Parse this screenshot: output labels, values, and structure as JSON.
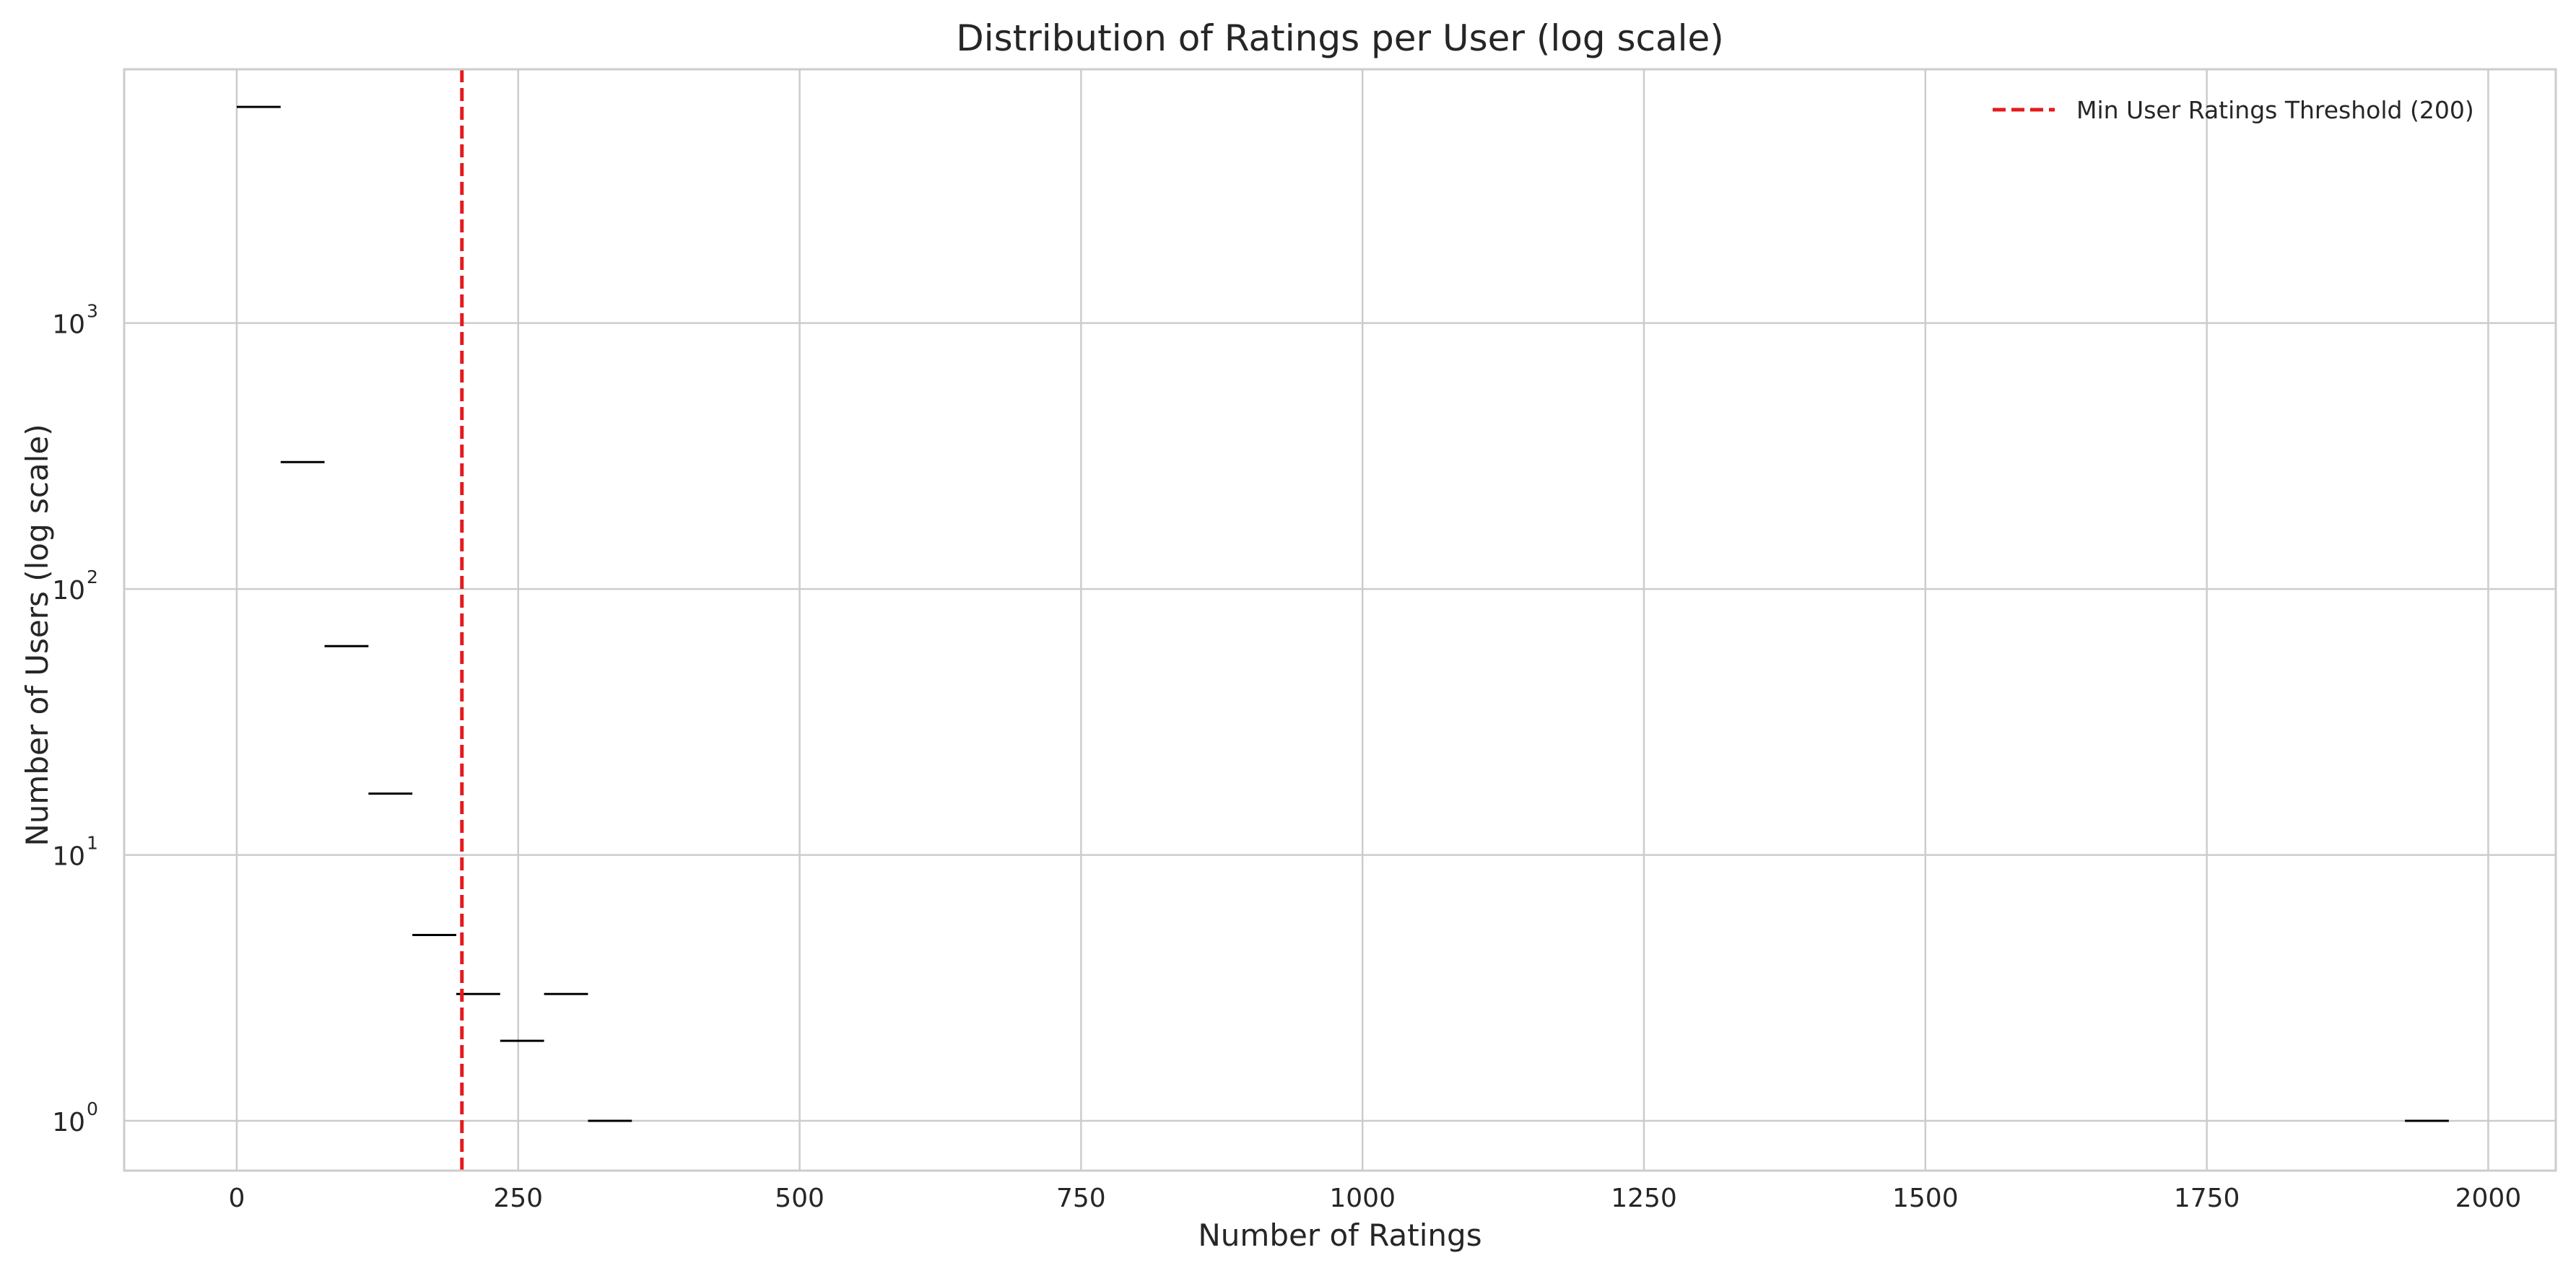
{
  "chart_data": {
    "type": "bar",
    "title": "Distribution of Ratings per User (log scale)",
    "xlabel": "Number of Ratings",
    "ylabel": "Number of Users (log scale)",
    "xlim": [
      -100,
      2060
    ],
    "ylim": [
      0.65,
      9000
    ],
    "yscale": "log",
    "grid": true,
    "x_ticks": [
      {
        "value": 0,
        "label": "0"
      },
      {
        "value": 250,
        "label": "250"
      },
      {
        "value": 500,
        "label": "500"
      },
      {
        "value": 750,
        "label": "750"
      },
      {
        "value": 1000,
        "label": "1000"
      },
      {
        "value": 1250,
        "label": "1250"
      },
      {
        "value": 1500,
        "label": "1500"
      },
      {
        "value": 1750,
        "label": "1750"
      },
      {
        "value": 2000,
        "label": "2000"
      }
    ],
    "y_ticks": [
      {
        "value": 1,
        "base": "10",
        "exp": "0"
      },
      {
        "value": 10,
        "base": "10",
        "exp": "1"
      },
      {
        "value": 100,
        "base": "10",
        "exp": "2"
      },
      {
        "value": 1000,
        "base": "10",
        "exp": "3"
      }
    ],
    "bins": [
      {
        "x0": 0,
        "x1": 39,
        "count": 6500
      },
      {
        "x0": 39,
        "x1": 78,
        "count": 300
      },
      {
        "x0": 78,
        "x1": 117,
        "count": 61
      },
      {
        "x0": 117,
        "x1": 156,
        "count": 17
      },
      {
        "x0": 156,
        "x1": 195,
        "count": 5
      },
      {
        "x0": 195,
        "x1": 234,
        "count": 3
      },
      {
        "x0": 234,
        "x1": 273,
        "count": 2
      },
      {
        "x0": 273,
        "x1": 312,
        "count": 3
      },
      {
        "x0": 312,
        "x1": 351,
        "count": 1
      },
      {
        "x0": 1926,
        "x1": 1965,
        "count": 1
      }
    ],
    "threshold": {
      "value": 200,
      "label": "Min User Ratings Threshold (200)",
      "color": "#e41a1c"
    },
    "legend_position": "top-right"
  }
}
